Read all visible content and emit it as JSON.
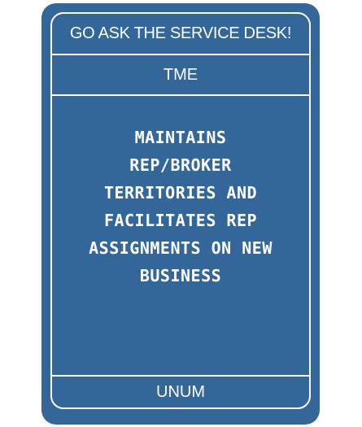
{
  "card": {
    "header": "GO ASK THE SERVICE DESK!",
    "subheader": "TME",
    "body": "MAINTAINS REP/BROKER TERRITORIES AND FACILITATES REP ASSIGNMENTS ON NEW BUSINESS",
    "footer": "UNUM"
  },
  "colors": {
    "card_background": "#336699",
    "border": "#ffffff",
    "text": "#ffffff",
    "page_background": "#ffffff"
  }
}
